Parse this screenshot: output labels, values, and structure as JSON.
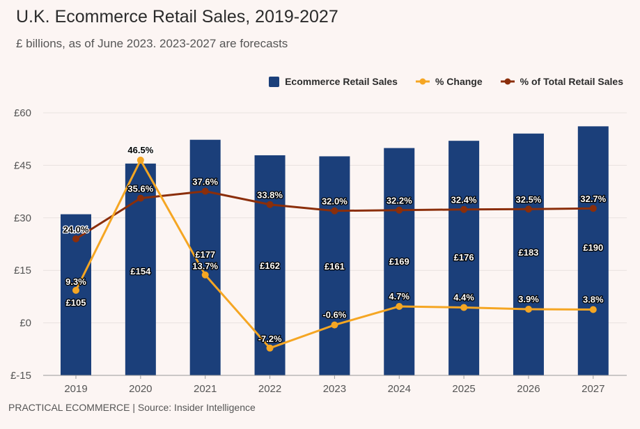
{
  "header": {
    "title": "U.K. Ecommerce Retail Sales, 2019-2027",
    "subtitle": "£ billions, as of June 2023. 2023-2027 are forecasts"
  },
  "footer": {
    "source": "PRACTICAL ECOMMERCE | Source: Insider Intelligence"
  },
  "legend": {
    "bars_label": "Ecommerce Retail Sales",
    "change_label": "% Change",
    "share_label": "% of Total Retail Sales"
  },
  "colors": {
    "bars": "#1b3f7a",
    "change": "#f5a623",
    "share": "#8b2e0a",
    "background": "#fcf5f3"
  },
  "chart_data": {
    "type": "bar",
    "title": "U.K. Ecommerce Retail Sales, 2019-2027",
    "subtitle": "£ billions, as of June 2023. 2023-2027 are forecasts",
    "categories": [
      "2019",
      "2020",
      "2021",
      "2022",
      "2023",
      "2024",
      "2025",
      "2026",
      "2027"
    ],
    "ylim": [
      -15,
      60
    ],
    "yticks": [
      -15,
      0,
      15,
      30,
      45,
      60
    ],
    "ytick_labels": [
      "£-15",
      "£0",
      "£15",
      "£30",
      "£45",
      "£60"
    ],
    "legend_position": "top-right",
    "series": [
      {
        "name": "Ecommerce Retail Sales",
        "type": "bar",
        "values": [
          105,
          154,
          177,
          162,
          161,
          169,
          176,
          183,
          190
        ],
        "labels": [
          "£105",
          "£154",
          "£177",
          "£162",
          "£161",
          "£169",
          "£176",
          "£183",
          "£190"
        ]
      },
      {
        "name": "% Change",
        "type": "line",
        "values": [
          9.3,
          46.5,
          13.7,
          -7.2,
          -0.6,
          4.7,
          4.4,
          3.9,
          3.8
        ],
        "labels": [
          "9.3%",
          "46.5%",
          "13.7%",
          "-7.2%",
          "-0.6%",
          "4.7%",
          "4.4%",
          "3.9%",
          "3.8%"
        ]
      },
      {
        "name": "% of Total Retail Sales",
        "type": "line",
        "values": [
          24.0,
          35.6,
          37.6,
          33.8,
          32.0,
          32.2,
          32.4,
          32.5,
          32.7
        ],
        "labels": [
          "24.0%",
          "35.6%",
          "37.6%",
          "33.8%",
          "32.0%",
          "32.2%",
          "32.4%",
          "32.5%",
          "32.7%"
        ]
      }
    ]
  }
}
